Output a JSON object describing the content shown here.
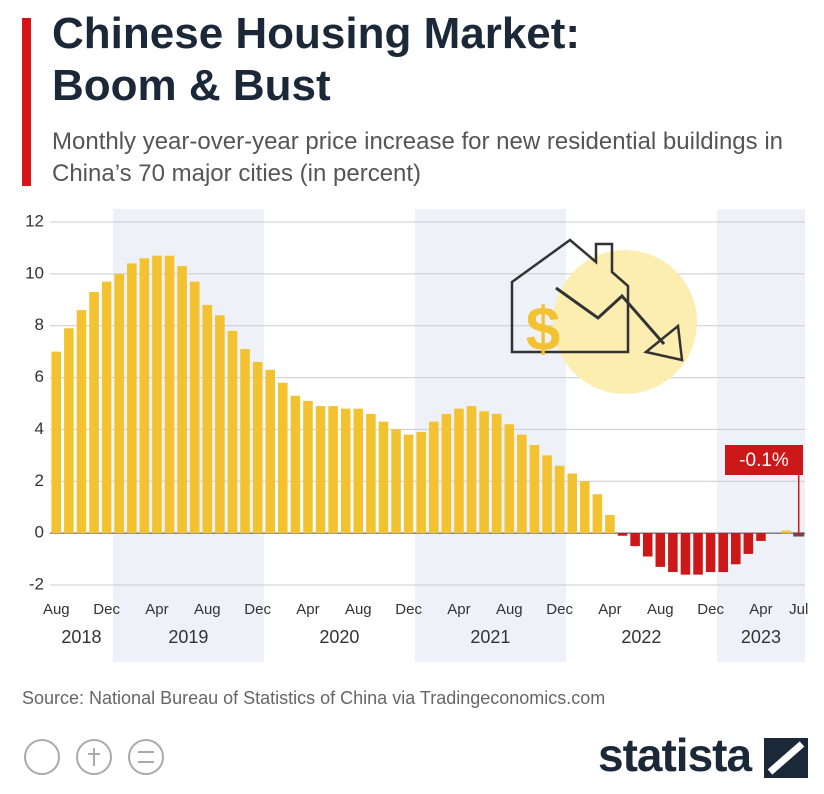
{
  "chart_data": {
    "type": "bar",
    "title": "Chinese Housing Market: Boom & Bust",
    "subtitle": "Monthly year-over-year price increase for new residential buildings in China’s 70 major cities (in percent)",
    "source": "Source: National Bureau of Statistics of China via Tradingeconomics.com",
    "logo": "statista",
    "categories": [
      "Aug",
      null,
      null,
      null,
      "Dec",
      null,
      null,
      null,
      "Apr",
      null,
      null,
      null,
      "Aug",
      null,
      null,
      null,
      "Dec",
      null,
      null,
      null,
      "Apr",
      null,
      null,
      null,
      "Aug",
      null,
      null,
      null,
      "Dec",
      null,
      null,
      null,
      "Apr",
      null,
      null,
      null,
      "Aug",
      null,
      null,
      null,
      "Dec",
      null,
      null,
      null,
      "Apr",
      null,
      null,
      null,
      "Aug",
      null,
      null,
      null,
      "Dec",
      null,
      null,
      null,
      "Apr",
      null,
      null,
      "Jul"
    ],
    "year_labels": [
      "2018",
      null,
      null,
      null,
      null,
      "2019",
      null,
      null,
      null,
      null,
      null,
      null,
      null,
      null,
      null,
      null,
      null,
      "2020",
      null,
      null,
      null,
      null,
      null,
      null,
      null,
      null,
      null,
      null,
      null,
      "2021",
      null,
      null,
      null,
      null,
      null,
      null,
      null,
      null,
      null,
      null,
      null,
      "2022",
      null,
      null,
      null,
      null,
      null,
      null,
      null,
      null,
      null,
      null,
      null,
      "2023",
      null,
      null,
      null,
      null,
      null,
      null
    ],
    "values": [
      7.0,
      7.9,
      8.6,
      9.3,
      9.7,
      10.0,
      10.4,
      10.6,
      10.7,
      10.7,
      10.3,
      9.7,
      8.8,
      8.4,
      7.8,
      7.1,
      6.6,
      6.3,
      5.8,
      5.3,
      5.1,
      4.9,
      4.9,
      4.8,
      4.8,
      4.6,
      4.3,
      4.0,
      3.8,
      3.9,
      4.3,
      4.6,
      4.8,
      4.9,
      4.7,
      4.6,
      4.2,
      3.8,
      3.4,
      3.0,
      2.6,
      2.3,
      2.0,
      1.5,
      0.7,
      -0.1,
      -0.5,
      -0.9,
      -1.3,
      -1.5,
      -1.6,
      -1.6,
      -1.5,
      -1.5,
      -1.2,
      -0.8,
      -0.3,
      0.0,
      0.1,
      -0.1
    ],
    "value_labels": [
      null,
      null,
      null,
      null,
      null,
      null,
      null,
      null,
      null,
      null,
      null,
      null,
      null,
      null,
      null,
      null,
      null,
      null,
      null,
      null,
      null,
      null,
      null,
      null,
      null,
      null,
      null,
      null,
      null,
      null,
      null,
      null,
      null,
      null,
      null,
      null,
      null,
      null,
      null,
      null,
      null,
      null,
      null,
      null,
      null,
      null,
      null,
      null,
      null,
      null,
      null,
      null,
      null,
      null,
      null,
      null,
      null,
      null,
      null,
      "-0.1%"
    ],
    "positive_color": "#f2c230",
    "negative_color": "#cc1818",
    "ylim": [
      -2.5,
      12.5
    ],
    "yticks": [
      -2,
      0,
      2,
      4,
      6,
      8,
      10,
      12
    ],
    "grid": true
  }
}
